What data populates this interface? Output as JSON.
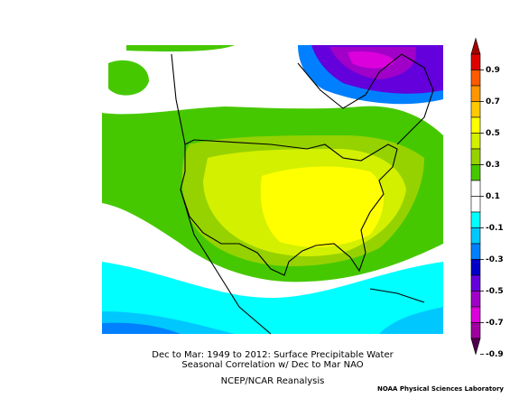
{
  "caption": {
    "line1": "Dec to Mar: 1949 to 2012: Surface Precipitable Water",
    "line2": "Seasonal Correlation w/ Dec to Mar NAO",
    "line3": "NCEP/NCAR Reanalysis"
  },
  "credit": "NOAA Physical Sciences Laboratory",
  "colorbar": {
    "ticks": [
      0.9,
      0.7,
      0.5,
      0.3,
      0.1,
      -0.1,
      -0.3,
      -0.5,
      -0.7,
      -0.9
    ]
  }
}
